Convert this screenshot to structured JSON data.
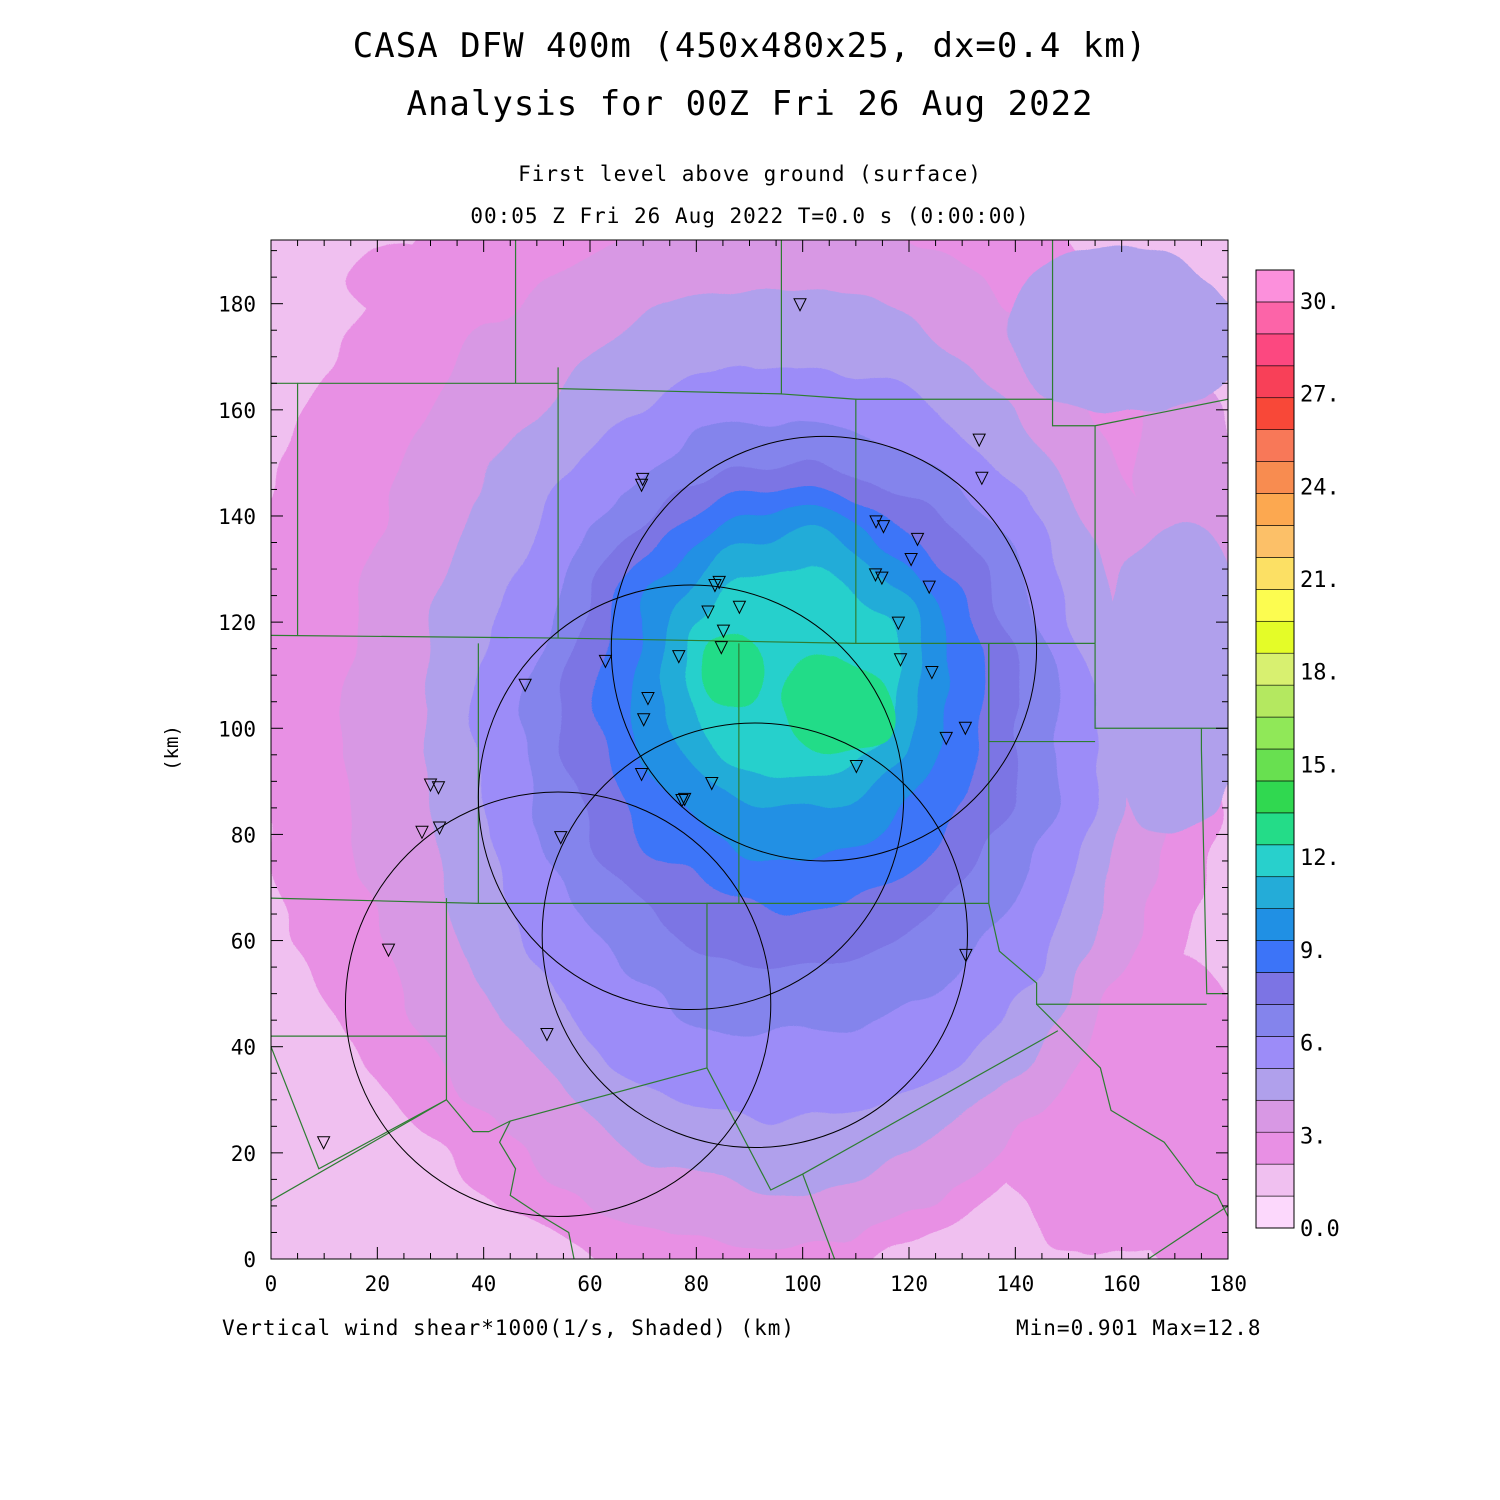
{
  "title_line1": "CASA DFW 400m (450x480x25, dx=0.4 km)",
  "title_line2": "Analysis for 00Z Fri 26 Aug 2022",
  "level": "First level above ground (surface)",
  "time_label": "00:05 Z Fri 26 Aug 2022   T=0.0 s (0:00:00)",
  "field_label": "Vertical wind shear*1000(1/s, Shaded)  (km)",
  "minmax": "Min=0.901 Max=12.8",
  "chart_data": {
    "type": "heatmap",
    "ylabel": "(km)",
    "xlim": [
      0,
      180
    ],
    "ylim": [
      0,
      192
    ],
    "x_ticks": [
      "0",
      "20",
      "40",
      "60",
      "80",
      "100",
      "120",
      "140",
      "160",
      "180"
    ],
    "y_ticks": [
      "0",
      "20",
      "40",
      "60",
      "80",
      "100",
      "120",
      "140",
      "160",
      "180"
    ],
    "colorbar": {
      "range": [
        0,
        31
      ],
      "step": 1,
      "tick_labels": [
        "0.0",
        "3.",
        "6.",
        "9.",
        "12.",
        "15.",
        "18.",
        "21.",
        "24.",
        "27.",
        "30."
      ],
      "colors": [
        "#fcd8fc",
        "#f0c0f0",
        "#e890e4",
        "#d898e4",
        "#b0a0ec",
        "#9c8cf8",
        "#8484ec",
        "#7c74e4",
        "#3c74f8",
        "#2090e4",
        "#24acd8",
        "#28d0cc",
        "#24dc88",
        "#30d850",
        "#68e050",
        "#90e858",
        "#b4e860",
        "#d8f070",
        "#e4fc28",
        "#fcfc50",
        "#fce064",
        "#fcc068",
        "#fca850",
        "#f88c50",
        "#f87858",
        "#f84838",
        "#f84058",
        "#fc4880",
        "#fc64a8",
        "#fc90dc"
      ]
    },
    "field": {
      "background": "#f0c0f0",
      "blobs": [
        {
          "cx": 14,
          "cy": 160,
          "rx": 28,
          "ry": 22,
          "v": 1
        },
        {
          "cx": 8,
          "cy": 20,
          "rx": 16,
          "ry": 24,
          "v": 1
        },
        {
          "cx": 30,
          "cy": 15,
          "rx": 24,
          "ry": 12,
          "v": 1
        },
        {
          "cx": 175,
          "cy": 8,
          "rx": 14,
          "ry": 10,
          "v": 2
        },
        {
          "cx": 88,
          "cy": 108,
          "rx": 92,
          "ry": 112,
          "v": 2
        },
        {
          "cx": 160,
          "cy": 30,
          "rx": 26,
          "ry": 30,
          "v": 2
        },
        {
          "cx": 25,
          "cy": 185,
          "rx": 10,
          "ry": 6,
          "v": 2
        },
        {
          "cx": 92,
          "cy": 100,
          "rx": 78,
          "ry": 98,
          "v": 3
        },
        {
          "cx": 172,
          "cy": 140,
          "rx": 10,
          "ry": 28,
          "v": 3
        },
        {
          "cx": 95,
          "cy": 98,
          "rx": 66,
          "ry": 85,
          "v": 4
        },
        {
          "cx": 160,
          "cy": 175,
          "rx": 22,
          "ry": 16,
          "v": 4
        },
        {
          "cx": 170,
          "cy": 110,
          "rx": 14,
          "ry": 30,
          "v": 4
        },
        {
          "cx": 97,
          "cy": 97,
          "rx": 58,
          "ry": 72,
          "v": 5
        },
        {
          "cx": 98,
          "cy": 100,
          "rx": 50,
          "ry": 58,
          "v": 6
        },
        {
          "cx": 98,
          "cy": 103,
          "rx": 43,
          "ry": 48,
          "v": 7
        },
        {
          "cx": 98,
          "cy": 106,
          "rx": 37,
          "ry": 40,
          "v": 8
        },
        {
          "cx": 98,
          "cy": 108,
          "rx": 31,
          "ry": 33,
          "v": 9
        },
        {
          "cx": 98,
          "cy": 110,
          "rx": 25,
          "ry": 26,
          "v": 10
        },
        {
          "cx": 98,
          "cy": 110,
          "rx": 20,
          "ry": 20,
          "v": 11
        },
        {
          "cx": 107,
          "cy": 104,
          "rx": 10,
          "ry": 9,
          "v": 12
        },
        {
          "cx": 87,
          "cy": 110,
          "rx": 6,
          "ry": 8,
          "v": 12
        }
      ]
    },
    "radar_circles": [
      {
        "cx": 104,
        "cy": 115,
        "r": 40
      },
      {
        "cx": 79,
        "cy": 87,
        "r": 40
      },
      {
        "cx": 91,
        "cy": 61,
        "r": 40
      },
      {
        "cx": 54,
        "cy": 48,
        "r": 40
      }
    ],
    "stations": [
      [
        99.5,
        179.8
      ],
      [
        69.9,
        146.9
      ],
      [
        69.7,
        145.8
      ],
      [
        133.2,
        154.3
      ],
      [
        133.7,
        147.1
      ],
      [
        113.8,
        138.9
      ],
      [
        115.2,
        138.0
      ],
      [
        121.6,
        135.6
      ],
      [
        120.4,
        131.8
      ],
      [
        113.7,
        128.9
      ],
      [
        114.9,
        128.3
      ],
      [
        123.8,
        126.6
      ],
      [
        84.3,
        127.5
      ],
      [
        83.5,
        126.9
      ],
      [
        88.1,
        122.8
      ],
      [
        82.2,
        121.9
      ],
      [
        85.1,
        118.3
      ],
      [
        118.0,
        119.8
      ],
      [
        84.7,
        115.2
      ],
      [
        62.9,
        112.6
      ],
      [
        76.7,
        113.5
      ],
      [
        118.4,
        112.9
      ],
      [
        124.3,
        110.5
      ],
      [
        47.8,
        108.1
      ],
      [
        70.9,
        105.6
      ],
      [
        70.1,
        101.6
      ],
      [
        130.6,
        100.0
      ],
      [
        127.0,
        98.1
      ],
      [
        110.1,
        92.8
      ],
      [
        69.7,
        91.3
      ],
      [
        82.9,
        89.6
      ],
      [
        30.0,
        89.3
      ],
      [
        31.5,
        88.8
      ],
      [
        77.3,
        86.4
      ],
      [
        77.8,
        86.6
      ],
      [
        31.7,
        81.2
      ],
      [
        28.4,
        80.4
      ],
      [
        54.5,
        79.4
      ],
      [
        22.1,
        58.2
      ],
      [
        130.7,
        57.2
      ],
      [
        51.9,
        42.3
      ],
      [
        9.9,
        21.9
      ]
    ],
    "boundaries": [
      [
        [
          0,
          165
        ],
        [
          5,
          165
        ],
        [
          5,
          117.5
        ]
      ],
      [
        [
          5,
          165
        ],
        [
          54,
          165
        ],
        [
          54,
          168
        ]
      ],
      [
        [
          46,
          192
        ],
        [
          46,
          165
        ]
      ],
      [
        [
          54,
          165
        ],
        [
          54,
          117
        ]
      ],
      [
        [
          54,
          164
        ],
        [
          96,
          163
        ],
        [
          96,
          192
        ]
      ],
      [
        [
          96,
          163
        ],
        [
          110,
          162
        ],
        [
          110,
          116
        ]
      ],
      [
        [
          110,
          162
        ],
        [
          147,
          162
        ],
        [
          147,
          192
        ]
      ],
      [
        [
          147,
          162
        ],
        [
          147,
          157
        ],
        [
          155,
          157
        ],
        [
          155,
          116
        ]
      ],
      [
        [
          155,
          157
        ],
        [
          180,
          162
        ]
      ],
      [
        [
          0,
          117.5
        ],
        [
          54,
          117
        ],
        [
          110,
          116
        ],
        [
          155,
          116
        ]
      ],
      [
        [
          155,
          116
        ],
        [
          155,
          100
        ],
        [
          180,
          100
        ]
      ],
      [
        [
          39,
          116
        ],
        [
          39,
          67
        ]
      ],
      [
        [
          88,
          116
        ],
        [
          88,
          67
        ]
      ],
      [
        [
          135,
          116
        ],
        [
          135,
          97.5
        ],
        [
          155,
          97.5
        ]
      ],
      [
        [
          135,
          116
        ],
        [
          135,
          67
        ]
      ],
      [
        [
          0,
          68
        ],
        [
          39,
          67
        ],
        [
          135,
          67
        ]
      ],
      [
        [
          175,
          100
        ],
        [
          175,
          96
        ],
        [
          176,
          50
        ],
        [
          180,
          50
        ]
      ],
      [
        [
          135,
          67
        ],
        [
          137,
          58
        ],
        [
          144,
          52
        ],
        [
          144,
          48
        ],
        [
          160,
          48
        ],
        [
          176,
          48
        ]
      ],
      [
        [
          33,
          68
        ],
        [
          33,
          45
        ],
        [
          33,
          30
        ]
      ],
      [
        [
          0,
          42
        ],
        [
          15,
          42
        ],
        [
          33,
          42
        ]
      ],
      [
        [
          88,
          67
        ],
        [
          82,
          67
        ],
        [
          82,
          36
        ]
      ],
      [
        [
          0,
          40
        ],
        [
          9,
          17
        ],
        [
          33,
          30
        ],
        [
          38,
          24
        ],
        [
          41,
          24
        ]
      ],
      [
        [
          0,
          11
        ],
        [
          33,
          30
        ]
      ],
      [
        [
          41,
          24
        ],
        [
          45,
          26
        ],
        [
          82,
          36
        ],
        [
          94,
          13
        ],
        [
          100,
          16
        ],
        [
          148,
          43
        ]
      ],
      [
        [
          100,
          16
        ],
        [
          106,
          0
        ]
      ],
      [
        [
          144,
          48
        ],
        [
          156,
          36
        ],
        [
          158,
          28
        ],
        [
          168,
          22
        ],
        [
          174,
          14
        ],
        [
          178,
          12
        ],
        [
          180,
          8
        ]
      ],
      [
        [
          165,
          0
        ],
        [
          180,
          10
        ]
      ],
      [
        [
          45,
          26
        ],
        [
          43,
          22
        ],
        [
          46,
          17
        ],
        [
          45,
          12
        ],
        [
          51,
          8
        ],
        [
          56,
          5
        ],
        [
          57,
          0
        ]
      ]
    ]
  }
}
